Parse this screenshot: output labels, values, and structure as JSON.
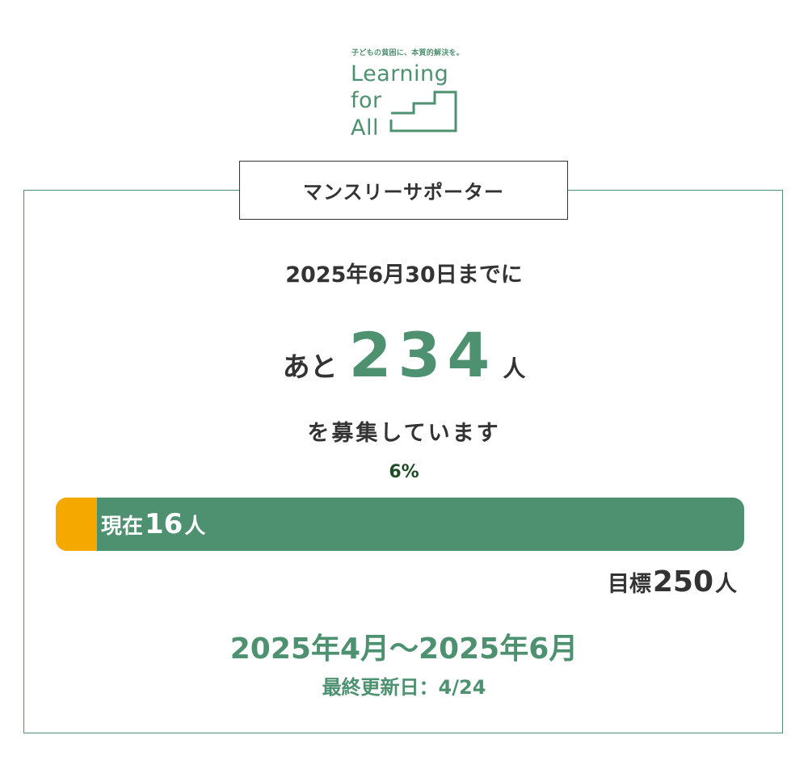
{
  "logo": {
    "tagline": "子どもの貧困に、本質的解決を。",
    "line1": "Learning",
    "line2": "for",
    "line3": "All",
    "brand_color": "#4e9170"
  },
  "campaign": {
    "title": "マンスリーサポーター",
    "deadline": "2025年6月30日までに",
    "remaining_prefix": "あと",
    "remaining_count": "234",
    "remaining_suffix": "人",
    "recruiting_text": "を募集しています",
    "progress_percent_label": "6%",
    "progress_fraction": 0.06,
    "current_prefix": "現在",
    "current_count": "16",
    "current_suffix": "人",
    "goal_prefix": "目標",
    "goal_count": "250",
    "goal_suffix": "人",
    "period": "2025年4月〜2025年6月",
    "last_updated": "最終更新日：4/24"
  },
  "colors": {
    "accent": "#4e9170",
    "progress_fill": "#f5a800",
    "progress_track": "#4e9170",
    "percent_text": "#1f4d26",
    "text": "#333333"
  }
}
